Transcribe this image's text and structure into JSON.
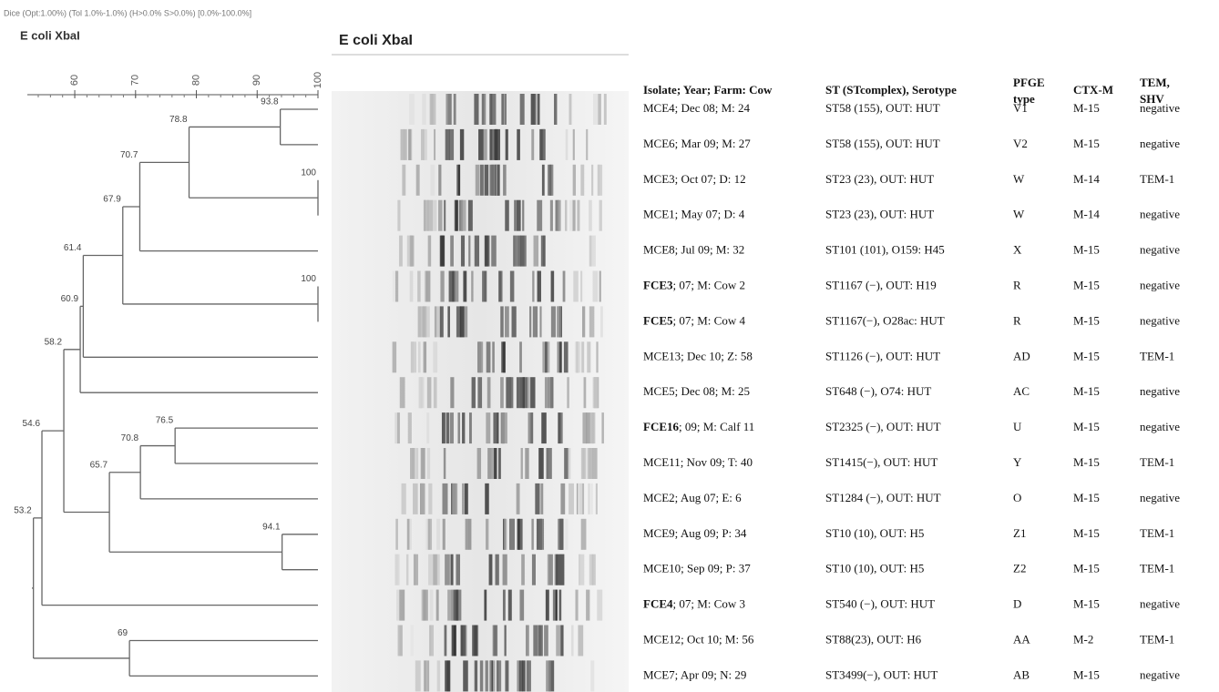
{
  "header": {
    "settings_line": "Dice (Opt:1.00%) (Tol 1.0%-1.0%) (H>0.0% S>0.0%) [0.0%-100.0%]",
    "dendrogram_title": "E coli XbaI",
    "gel_title": "E coli XbaI"
  },
  "dendrogram": {
    "xlim": [
      52.2,
      100
    ],
    "xticks": [
      60,
      70,
      80,
      90,
      100
    ],
    "tree": {
      "value": 53.2,
      "children": [
        {
          "value": 54.6,
          "children": [
            {
              "value": 58.2,
              "children": [
                {
                  "value": 60.9,
                  "children": [
                    {
                      "value": 61.4,
                      "children": [
                        {
                          "value": 67.9,
                          "children": [
                            {
                              "value": 70.7,
                              "children": [
                                {
                                  "value": 78.8,
                                  "children": [
                                    {
                                      "value": 93.8,
                                      "children": [
                                        null,
                                        null
                                      ]
                                    },
                                    {
                                      "value": 100,
                                      "children": [
                                        null,
                                        null
                                      ]
                                    }
                                  ]
                                },
                                null
                              ]
                            },
                            {
                              "value": 100,
                              "children": [
                                null,
                                null
                              ]
                            }
                          ]
                        },
                        null
                      ]
                    },
                    null
                  ]
                },
                {
                  "value": 65.7,
                  "children": [
                    {
                      "value": 70.8,
                      "children": [
                        {
                          "value": 76.5,
                          "children": [
                            null,
                            null
                          ]
                        },
                        null
                      ]
                    },
                    {
                      "value": 94.1,
                      "children": [
                        null,
                        null
                      ]
                    }
                  ]
                }
              ]
            },
            null
          ]
        },
        {
          "value": 69,
          "children": [
            null,
            null
          ]
        }
      ]
    }
  },
  "table": {
    "headers": [
      "Isolate; Year; Farm: Cow",
      "ST (STcomplex), Serotype",
      "PFGE type",
      "CTX-M",
      "TEM, SHV"
    ],
    "rows": [
      {
        "isolate": "MCE4; Dec 08; M: 24",
        "st": "ST58 (155), OUT: HUT",
        "pfge": "V1",
        "ctx": "M-15",
        "tem": "negative"
      },
      {
        "isolate": "MCE6; Mar 09; M: 27",
        "st": "ST58 (155), OUT: HUT",
        "pfge": "V2",
        "ctx": "M-15",
        "tem": "negative"
      },
      {
        "isolate": "MCE3; Oct 07; D: 12",
        "st": "ST23 (23), OUT: HUT",
        "pfge": "W",
        "ctx": "M-14",
        "tem": "TEM-1"
      },
      {
        "isolate": "MCE1; May 07; D: 4",
        "st": "ST23 (23), OUT: HUT",
        "pfge": "W",
        "ctx": "M-14",
        "tem": "negative"
      },
      {
        "isolate": "MCE8; Jul 09; M: 32",
        "st": "ST101 (101), O159: H45",
        "pfge": "X",
        "ctx": "M-15",
        "tem": "negative"
      },
      {
        "isolate_bold": "FCE3",
        "isolate": "; 07; M: Cow 2",
        "st": "ST1167 (−), OUT: H19",
        "pfge": "R",
        "ctx": "M-15",
        "tem": "negative"
      },
      {
        "isolate_bold": "FCE5",
        "isolate": "; 07; M: Cow 4",
        "st": "ST1167(−), O28ac: HUT",
        "pfge": "R",
        "ctx": "M-15",
        "tem": "negative"
      },
      {
        "isolate": "MCE13; Dec 10; Z: 58",
        "st": "ST1126 (−), OUT: HUT",
        "pfge": "AD",
        "ctx": "M-15",
        "tem": "TEM-1"
      },
      {
        "isolate": "MCE5; Dec 08; M: 25",
        "st": "ST648 (−), O74: HUT",
        "pfge": "AC",
        "ctx": "M-15",
        "tem": "negative"
      },
      {
        "isolate_bold": "FCE16",
        "isolate": "; 09; M: Calf 11",
        "st": "ST2325 (−), OUT: HUT",
        "pfge": "U",
        "ctx": "M-15",
        "tem": "negative"
      },
      {
        "isolate": "MCE11; Nov 09; T: 40",
        "st": "ST1415(−), OUT: HUT",
        "pfge": "Y",
        "ctx": "M-15",
        "tem": "TEM-1"
      },
      {
        "isolate": "MCE2; Aug 07; E: 6",
        "st": "ST1284 (−), OUT: HUT",
        "pfge": "O",
        "ctx": "M-15",
        "tem": "negative"
      },
      {
        "isolate": "MCE9; Aug 09; P: 34",
        "st": "ST10 (10), OUT: H5",
        "pfge": "Z1",
        "ctx": "M-15",
        "tem": "TEM-1"
      },
      {
        "isolate": "MCE10; Sep 09; P: 37",
        "st": "ST10 (10), OUT: H5",
        "pfge": "Z2",
        "ctx": "M-15",
        "tem": "TEM-1"
      },
      {
        "isolate_bold": "FCE4",
        "isolate": "; 07; M: Cow 3",
        "st": "ST540 (−), OUT: HUT",
        "pfge": "D",
        "ctx": "M-15",
        "tem": "negative"
      },
      {
        "isolate": "MCE12; Oct 10; M: 56",
        "st": "ST88(23), OUT: H6",
        "pfge": "AA",
        "ctx": "M-2",
        "tem": "TEM-1"
      },
      {
        "isolate": "MCE7; Apr 09; N: 29",
        "st": "ST3499(−), OUT: HUT",
        "pfge": "AB",
        "ctx": "M-15",
        "tem": "negative"
      }
    ]
  }
}
